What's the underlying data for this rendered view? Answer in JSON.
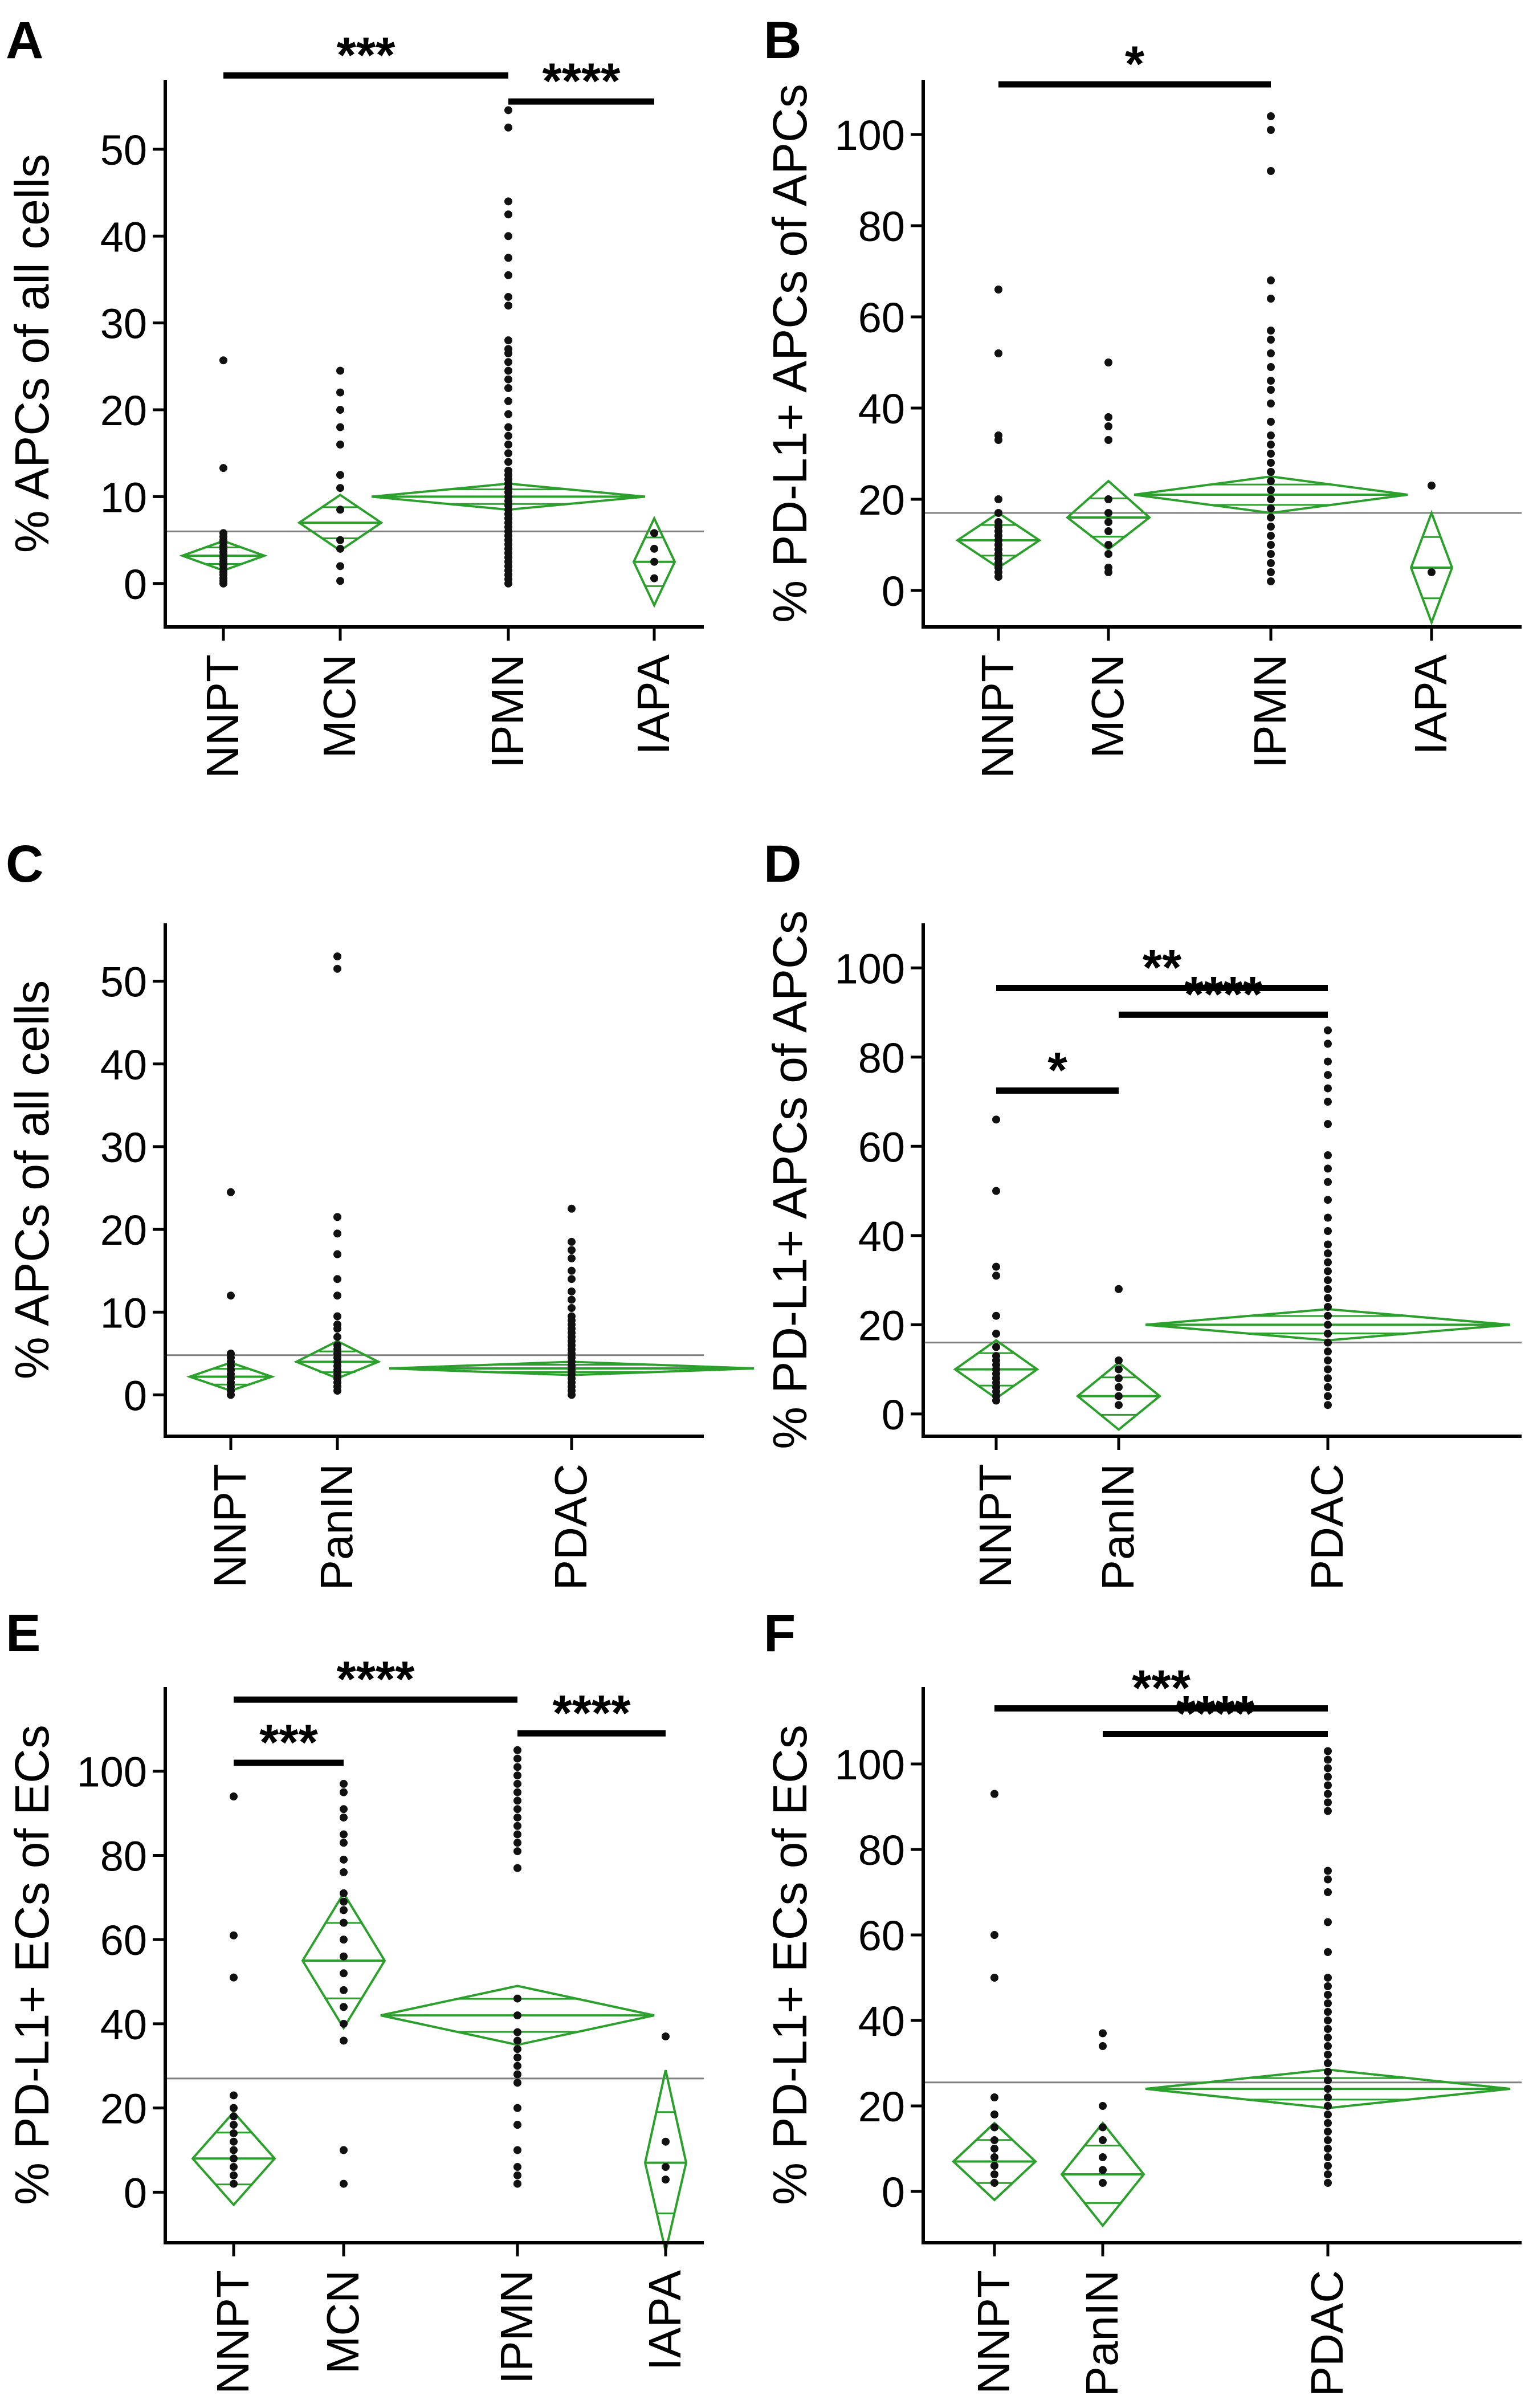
{
  "figure_colors": {
    "axis": "#000000",
    "points": "#111111",
    "diamond": "#2ca02c",
    "grand_mean_line": "#808080",
    "brackets": "#000000"
  },
  "chart_data": [
    {
      "panel": "A",
      "type": "scatter",
      "ylabel": "% APCs of all cells",
      "ylim": [
        -5,
        58
      ],
      "yticks": [
        0,
        10,
        20,
        30,
        40,
        50
      ],
      "categories": [
        "NNPT",
        "MCN",
        "IPMN",
        "IAPA"
      ],
      "grand_mean": 6.0,
      "groups": [
        {
          "name": "NNPT",
          "mean": 3.2,
          "ci": [
            1.5,
            4.9
          ],
          "values": [
            25.7,
            13.3,
            5.8,
            5.4,
            5.0,
            4.7,
            4.3,
            4.0,
            3.6,
            3.2,
            2.9,
            2.5,
            2.1,
            1.7,
            1.3,
            1.0,
            0.6,
            0.3,
            0.0
          ]
        },
        {
          "name": "MCN",
          "mean": 7.0,
          "ci": [
            3.8,
            10.2
          ],
          "values": [
            24.5,
            22.0,
            20.0,
            18.0,
            16.0,
            12.5,
            11.0,
            8.5,
            5.0,
            4.0,
            2.0,
            0.3
          ]
        },
        {
          "name": "IPMN",
          "mean": 10.0,
          "ci": [
            8.5,
            11.5
          ],
          "values": [
            54.5,
            52.5,
            44.0,
            42.5,
            40.0,
            37.5,
            35.5,
            33.0,
            32.0,
            28.0,
            27.0,
            26.5,
            25.5,
            24.5,
            23.5,
            22.5,
            21.0,
            19.5,
            18.0,
            17.0,
            16.0,
            15.0,
            14.0,
            13.0,
            12.5,
            12.0,
            11.5,
            11.0,
            10.5,
            10.0,
            9.5,
            9.0,
            8.5,
            8.0,
            7.5,
            7.0,
            6.5,
            6.0,
            5.5,
            5.0,
            4.5,
            4.0,
            3.5,
            3.0,
            2.5,
            2.0,
            1.5,
            1.0,
            0.5,
            0.0
          ]
        },
        {
          "name": "IAPA",
          "mean": 2.5,
          "ci": [
            -2.5,
            7.5
          ],
          "values": [
            5.8,
            4.0,
            2.5,
            0.6
          ]
        }
      ],
      "comparisons": [
        {
          "from": "NNPT",
          "to": "IPMN",
          "label": "***",
          "y": 58.5
        },
        {
          "from": "IPMN",
          "to": "IAPA",
          "label": "****",
          "y": 55.5
        }
      ]
    },
    {
      "panel": "B",
      "type": "scatter",
      "ylabel": "% PD-L1+ APCs of APCs",
      "ylim": [
        -8,
        112
      ],
      "yticks": [
        0,
        20,
        40,
        60,
        80,
        100
      ],
      "categories": [
        "NNPT",
        "MCN",
        "IPMN",
        "IAPA"
      ],
      "grand_mean": 17.0,
      "groups": [
        {
          "name": "NNPT",
          "mean": 11.0,
          "ci": [
            5.0,
            17.0
          ],
          "values": [
            66,
            52,
            34,
            33,
            20,
            17,
            15,
            14,
            13,
            12,
            11,
            10,
            9,
            8,
            7,
            6,
            5,
            4,
            3
          ]
        },
        {
          "name": "MCN",
          "mean": 16.0,
          "ci": [
            9.0,
            24.0
          ],
          "values": [
            50,
            38,
            36,
            33,
            20,
            17,
            15,
            13,
            10,
            8,
            5,
            4
          ]
        },
        {
          "name": "IPMN",
          "mean": 21.0,
          "ci": [
            17.0,
            25.0
          ],
          "values": [
            104,
            101,
            92,
            68,
            64,
            57,
            55,
            52,
            49,
            46,
            44,
            41,
            37,
            34,
            32,
            30,
            28,
            26,
            24,
            22,
            20,
            18,
            16,
            14,
            12,
            10,
            8,
            6,
            4,
            2
          ]
        },
        {
          "name": "IAPA",
          "mean": 5.0,
          "ci": [
            -7.0,
            17.0
          ],
          "values": [
            23,
            4
          ]
        }
      ],
      "comparisons": [
        {
          "from": "NNPT",
          "to": "IPMN",
          "label": "*",
          "y": 111
        }
      ]
    },
    {
      "panel": "C",
      "type": "scatter",
      "ylabel": "% APCs of all cells",
      "ylim": [
        -5,
        57
      ],
      "yticks": [
        0,
        10,
        20,
        30,
        40,
        50
      ],
      "categories": [
        "NNPT",
        "PanIN",
        "PDAC"
      ],
      "grand_mean": 4.8,
      "groups": [
        {
          "name": "NNPT",
          "mean": 2.2,
          "ci": [
            0.5,
            3.9
          ],
          "values": [
            24.5,
            12.0,
            5.0,
            4.5,
            4.0,
            3.5,
            3.0,
            2.5,
            2.0,
            1.5,
            1.0,
            0.5,
            0.0
          ]
        },
        {
          "name": "PanIN",
          "mean": 4.0,
          "ci": [
            2.0,
            6.5
          ],
          "values": [
            53.0,
            51.5,
            21.5,
            19.5,
            17.0,
            14.0,
            12.0,
            9.5,
            8.5,
            8.0,
            7.0,
            6.0,
            5.5,
            5.0,
            4.5,
            4.0,
            3.5,
            3.0,
            2.5,
            2.0,
            1.5,
            1.0,
            0.5
          ]
        },
        {
          "name": "PDAC",
          "mean": 3.2,
          "ci": [
            2.4,
            4.0
          ],
          "values": [
            22.5,
            18.5,
            17.5,
            16.5,
            15.0,
            14.0,
            12.5,
            11.5,
            10.5,
            9.5,
            9.0,
            8.5,
            8.0,
            7.5,
            7.0,
            6.5,
            6.0,
            5.5,
            5.0,
            4.5,
            4.0,
            3.5,
            3.0,
            2.5,
            2.0,
            1.5,
            1.0,
            0.5,
            0.0
          ]
        }
      ],
      "comparisons": []
    },
    {
      "panel": "D",
      "type": "scatter",
      "ylabel": "% PD-L1+ APCs of APCs",
      "ylim": [
        -5,
        110
      ],
      "yticks": [
        0,
        20,
        40,
        60,
        80,
        100
      ],
      "categories": [
        "NNPT",
        "PanIN",
        "PDAC"
      ],
      "grand_mean": 16.0,
      "groups": [
        {
          "name": "NNPT",
          "mean": 10.0,
          "ci": [
            3.5,
            16.5
          ],
          "values": [
            66,
            50,
            33,
            31,
            22,
            18,
            15,
            13,
            12,
            11,
            10,
            9,
            8,
            7,
            6,
            5,
            4,
            3
          ]
        },
        {
          "name": "PanIN",
          "mean": 4.0,
          "ci": [
            -3.5,
            11.5
          ],
          "values": [
            28,
            12,
            10,
            8,
            6,
            4,
            2
          ]
        },
        {
          "name": "PDAC",
          "mean": 20.0,
          "ci": [
            16.5,
            23.5
          ],
          "values": [
            86,
            83,
            79,
            76,
            73,
            70,
            65,
            58,
            55,
            52,
            48,
            44,
            41,
            38,
            36,
            34,
            32,
            30,
            28,
            26,
            24,
            22,
            20,
            18,
            16,
            14,
            12,
            10,
            8,
            6,
            4,
            2
          ]
        }
      ],
      "comparisons": [
        {
          "from": "NNPT",
          "to": "PDAC",
          "label": "**",
          "y": 95.5
        },
        {
          "from": "PanIN",
          "to": "PDAC",
          "label": "****",
          "y": 89.5
        },
        {
          "from": "NNPT",
          "to": "PanIN",
          "label": "*",
          "y": 72.5
        }
      ]
    },
    {
      "panel": "E",
      "type": "scatter",
      "ylabel": "% PD-L1+ ECs of ECs",
      "ylim": [
        -12,
        120
      ],
      "yticks": [
        0,
        20,
        40,
        60,
        80,
        100
      ],
      "categories": [
        "NNPT",
        "MCN",
        "IPMN",
        "IAPA"
      ],
      "grand_mean": 27.0,
      "groups": [
        {
          "name": "NNPT",
          "mean": 8.0,
          "ci": [
            -3.0,
            19.0
          ],
          "values": [
            94,
            61,
            51,
            23,
            20,
            18,
            16,
            14,
            12,
            10,
            8,
            6,
            4,
            2
          ]
        },
        {
          "name": "MCN",
          "mean": 55.0,
          "ci": [
            39.0,
            71.0
          ],
          "values": [
            97,
            95,
            91,
            89,
            85,
            83,
            79,
            76,
            71,
            69,
            67,
            64,
            60,
            56,
            52,
            48,
            44,
            40,
            36,
            10,
            2
          ]
        },
        {
          "name": "IPMN",
          "mean": 42.0,
          "ci": [
            35.0,
            49.0
          ],
          "values": [
            105,
            103,
            101,
            99,
            97,
            95,
            93,
            91,
            89,
            87,
            85,
            83,
            81,
            77,
            46,
            42,
            38,
            36,
            34,
            32,
            30,
            28,
            26,
            20,
            16,
            10,
            6,
            4,
            2
          ]
        },
        {
          "name": "IAPA",
          "mean": 7.0,
          "ci": [
            -14.0,
            29.0
          ],
          "values": [
            37,
            12,
            6,
            3
          ]
        }
      ],
      "comparisons": [
        {
          "from": "NNPT",
          "to": "IPMN",
          "label": "****",
          "y": 117
        },
        {
          "from": "IPMN",
          "to": "IAPA",
          "label": "****",
          "y": 109
        },
        {
          "from": "NNPT",
          "to": "MCN",
          "label": "***",
          "y": 102
        }
      ]
    },
    {
      "panel": "F",
      "type": "scatter",
      "ylabel": "% PD-L1+ ECs of ECs",
      "ylim": [
        -12,
        118
      ],
      "yticks": [
        0,
        20,
        40,
        60,
        80,
        100
      ],
      "categories": [
        "NNPT",
        "PanIN",
        "PDAC"
      ],
      "grand_mean": 25.5,
      "groups": [
        {
          "name": "NNPT",
          "mean": 7.0,
          "ci": [
            -2.0,
            16.0
          ],
          "values": [
            93,
            60,
            50,
            22,
            18,
            15,
            12,
            10,
            8,
            6,
            4,
            2
          ]
        },
        {
          "name": "PanIN",
          "mean": 4.0,
          "ci": [
            -8.0,
            16.0
          ],
          "values": [
            37,
            34,
            20,
            15,
            12,
            8,
            5,
            2
          ]
        },
        {
          "name": "PDAC",
          "mean": 24.0,
          "ci": [
            19.5,
            28.5
          ],
          "values": [
            103,
            101,
            99,
            97,
            95,
            93,
            91,
            89,
            75,
            73,
            70,
            63,
            56,
            50,
            48,
            46,
            44,
            42,
            40,
            38,
            36,
            34,
            32,
            30,
            28,
            26,
            24,
            22,
            20,
            18,
            16,
            14,
            12,
            10,
            8,
            6,
            4,
            2
          ]
        }
      ],
      "comparisons": [
        {
          "from": "NNPT",
          "to": "PDAC",
          "label": "***",
          "y": 113
        },
        {
          "from": "PanIN",
          "to": "PDAC",
          "label": "****",
          "y": 107
        }
      ]
    }
  ]
}
